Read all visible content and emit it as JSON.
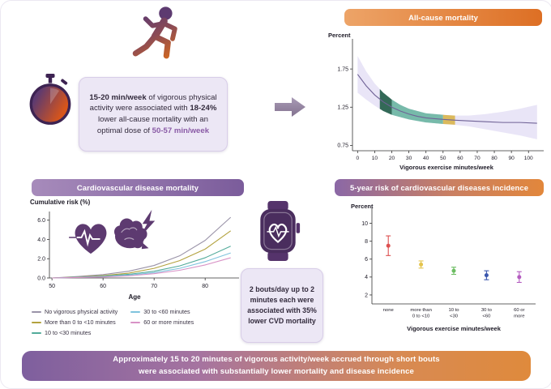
{
  "colors": {
    "accent_purple": "#5d3a70",
    "accent_orange": "#d86018",
    "banner_orange": "#dd6f24",
    "banner_purple": "#7b5c9b",
    "callout_bg": "#ece7f5",
    "highlight_text": "#8a5ba6"
  },
  "icons": {
    "runner": "runner-icon",
    "stopwatch": "stopwatch-icon",
    "arrow": "arrow-right-icon",
    "heart_ecg": "heart-ecg-icon",
    "brain": "brain-icon",
    "lightning": "lightning-bolt-icon",
    "smartwatch": "smartwatch-heart-icon"
  },
  "banners": {
    "all_cause": "All-cause mortality",
    "cvd_mortality": "Cardiovascular disease mortality",
    "five_year": "5-year risk of cardiovascular diseases incidence",
    "bottom_line1": "Approximately 15 to 20 minutes of vigorous activity/week accrued through short bouts",
    "bottom_line2": "were associated with substantially lower mortality and disease incidence"
  },
  "callouts": {
    "main": {
      "part1": "15-20 min/week",
      "part2": " of vigorous physical activity were associated with ",
      "part3": "18-24%",
      "part4": " lower all-cause mortality with an optimal dose of ",
      "part5": "50-57 min/week"
    },
    "bouts": {
      "part1": "2 bouts/day up to 2 minutes each",
      "part2": " were associated with ",
      "part3": "35%",
      "part4": " lower CVD mortality"
    }
  },
  "chart_data": [
    {
      "type": "line",
      "title": "All-cause mortality",
      "ylabel": "Percent",
      "xlabel": "Vigorous exercise minutes/week",
      "x": [
        0,
        5,
        10,
        15,
        20,
        25,
        30,
        35,
        40,
        45,
        50,
        57,
        65,
        75,
        85,
        95,
        105
      ],
      "mean": [
        1.68,
        1.53,
        1.41,
        1.32,
        1.25,
        1.2,
        1.16,
        1.13,
        1.11,
        1.1,
        1.09,
        1.08,
        1.07,
        1.06,
        1.05,
        1.05,
        1.04
      ],
      "upper": [
        1.92,
        1.72,
        1.56,
        1.44,
        1.35,
        1.28,
        1.23,
        1.2,
        1.17,
        1.16,
        1.15,
        1.14,
        1.14,
        1.16,
        1.19,
        1.23,
        1.28
      ],
      "lower": [
        1.44,
        1.35,
        1.27,
        1.2,
        1.15,
        1.12,
        1.09,
        1.07,
        1.05,
        1.04,
        1.03,
        1.02,
        1.0,
        0.96,
        0.92,
        0.88,
        0.83
      ],
      "yticks": [
        0.75,
        1.25,
        1.75
      ],
      "xticks": [
        0,
        10,
        20,
        30,
        40,
        50,
        60,
        70,
        80,
        90,
        100
      ],
      "ylim": [
        0.68,
        2.08
      ],
      "xlim": [
        -3,
        107
      ],
      "band_color": "#e9e5f7",
      "line_color": "#6f6296",
      "grid": false,
      "zones": [
        {
          "from": 13,
          "to": 20,
          "color": "#1f5b45",
          "opacity": 0.9,
          "label": "15-20 min/week"
        },
        {
          "from": 20,
          "to": 50,
          "color": "#63b39c",
          "opacity": 0.85,
          "label": "20-50 min/week"
        },
        {
          "from": 50,
          "to": 57,
          "color": "#d9b44a",
          "opacity": 0.9,
          "label": "50-57 min/week optimal dose"
        }
      ]
    },
    {
      "type": "line",
      "title": "Cardiovascular disease mortality",
      "ylabel": "Cumulative risk (%)",
      "xlabel": "Age",
      "x": [
        50,
        55,
        60,
        65,
        70,
        75,
        80,
        85
      ],
      "series": [
        {
          "name": "No vigorous physical activity",
          "color": "#9a93a8",
          "values": [
            0,
            0.15,
            0.35,
            0.7,
            1.3,
            2.3,
            3.9,
            6.3
          ]
        },
        {
          "name": "More than 0 to <10 minutes",
          "color": "#b3a23e",
          "values": [
            0,
            0.1,
            0.25,
            0.5,
            1.0,
            1.8,
            3.0,
            4.9
          ]
        },
        {
          "name": "10 to <30 minutes",
          "color": "#52ab9a",
          "values": [
            0,
            0.08,
            0.18,
            0.38,
            0.7,
            1.25,
            2.1,
            3.3
          ]
        },
        {
          "name": "30 to <60 minutes",
          "color": "#7fc3dd",
          "values": [
            0,
            0.06,
            0.14,
            0.3,
            0.55,
            1.0,
            1.7,
            2.6
          ]
        },
        {
          "name": "60 or more minutes",
          "color": "#d892c6",
          "values": [
            0,
            0.05,
            0.1,
            0.22,
            0.45,
            0.8,
            1.35,
            2.1
          ]
        }
      ],
      "yticks": [
        0,
        2,
        4,
        6
      ],
      "ytick_labels": [
        "0.0",
        "2.0",
        "4.0",
        "6.0"
      ],
      "xticks": [
        50,
        60,
        70,
        80
      ],
      "ylim": [
        0,
        6.9
      ],
      "xlim": [
        49.5,
        86
      ],
      "grid": false,
      "legend_position": "below"
    },
    {
      "type": "scatter",
      "title": "5-year risk of cardiovascular diseases incidence",
      "ylabel": "Percent",
      "xlabel": "Vigorous exercise minutes/week",
      "categories": [
        [
          "none"
        ],
        [
          "more than",
          "0 to <10"
        ],
        [
          "10 to",
          "<30"
        ],
        [
          "30 to",
          "<60"
        ],
        [
          "60 or",
          "more"
        ]
      ],
      "points": [
        {
          "value": 7.5,
          "lo": 6.4,
          "hi": 8.6,
          "color": "#dd5050"
        },
        {
          "value": 5.4,
          "lo": 5.0,
          "hi": 5.8,
          "color": "#e4c44d"
        },
        {
          "value": 4.7,
          "lo": 4.3,
          "hi": 5.1,
          "color": "#6cbd62"
        },
        {
          "value": 4.2,
          "lo": 3.7,
          "hi": 4.7,
          "color": "#3b57ae"
        },
        {
          "value": 4.0,
          "lo": 3.4,
          "hi": 4.6,
          "color": "#b45cc0"
        }
      ],
      "yticks": [
        2,
        4,
        6,
        8,
        10
      ],
      "ylim": [
        1,
        11.5
      ],
      "grid": false
    }
  ]
}
